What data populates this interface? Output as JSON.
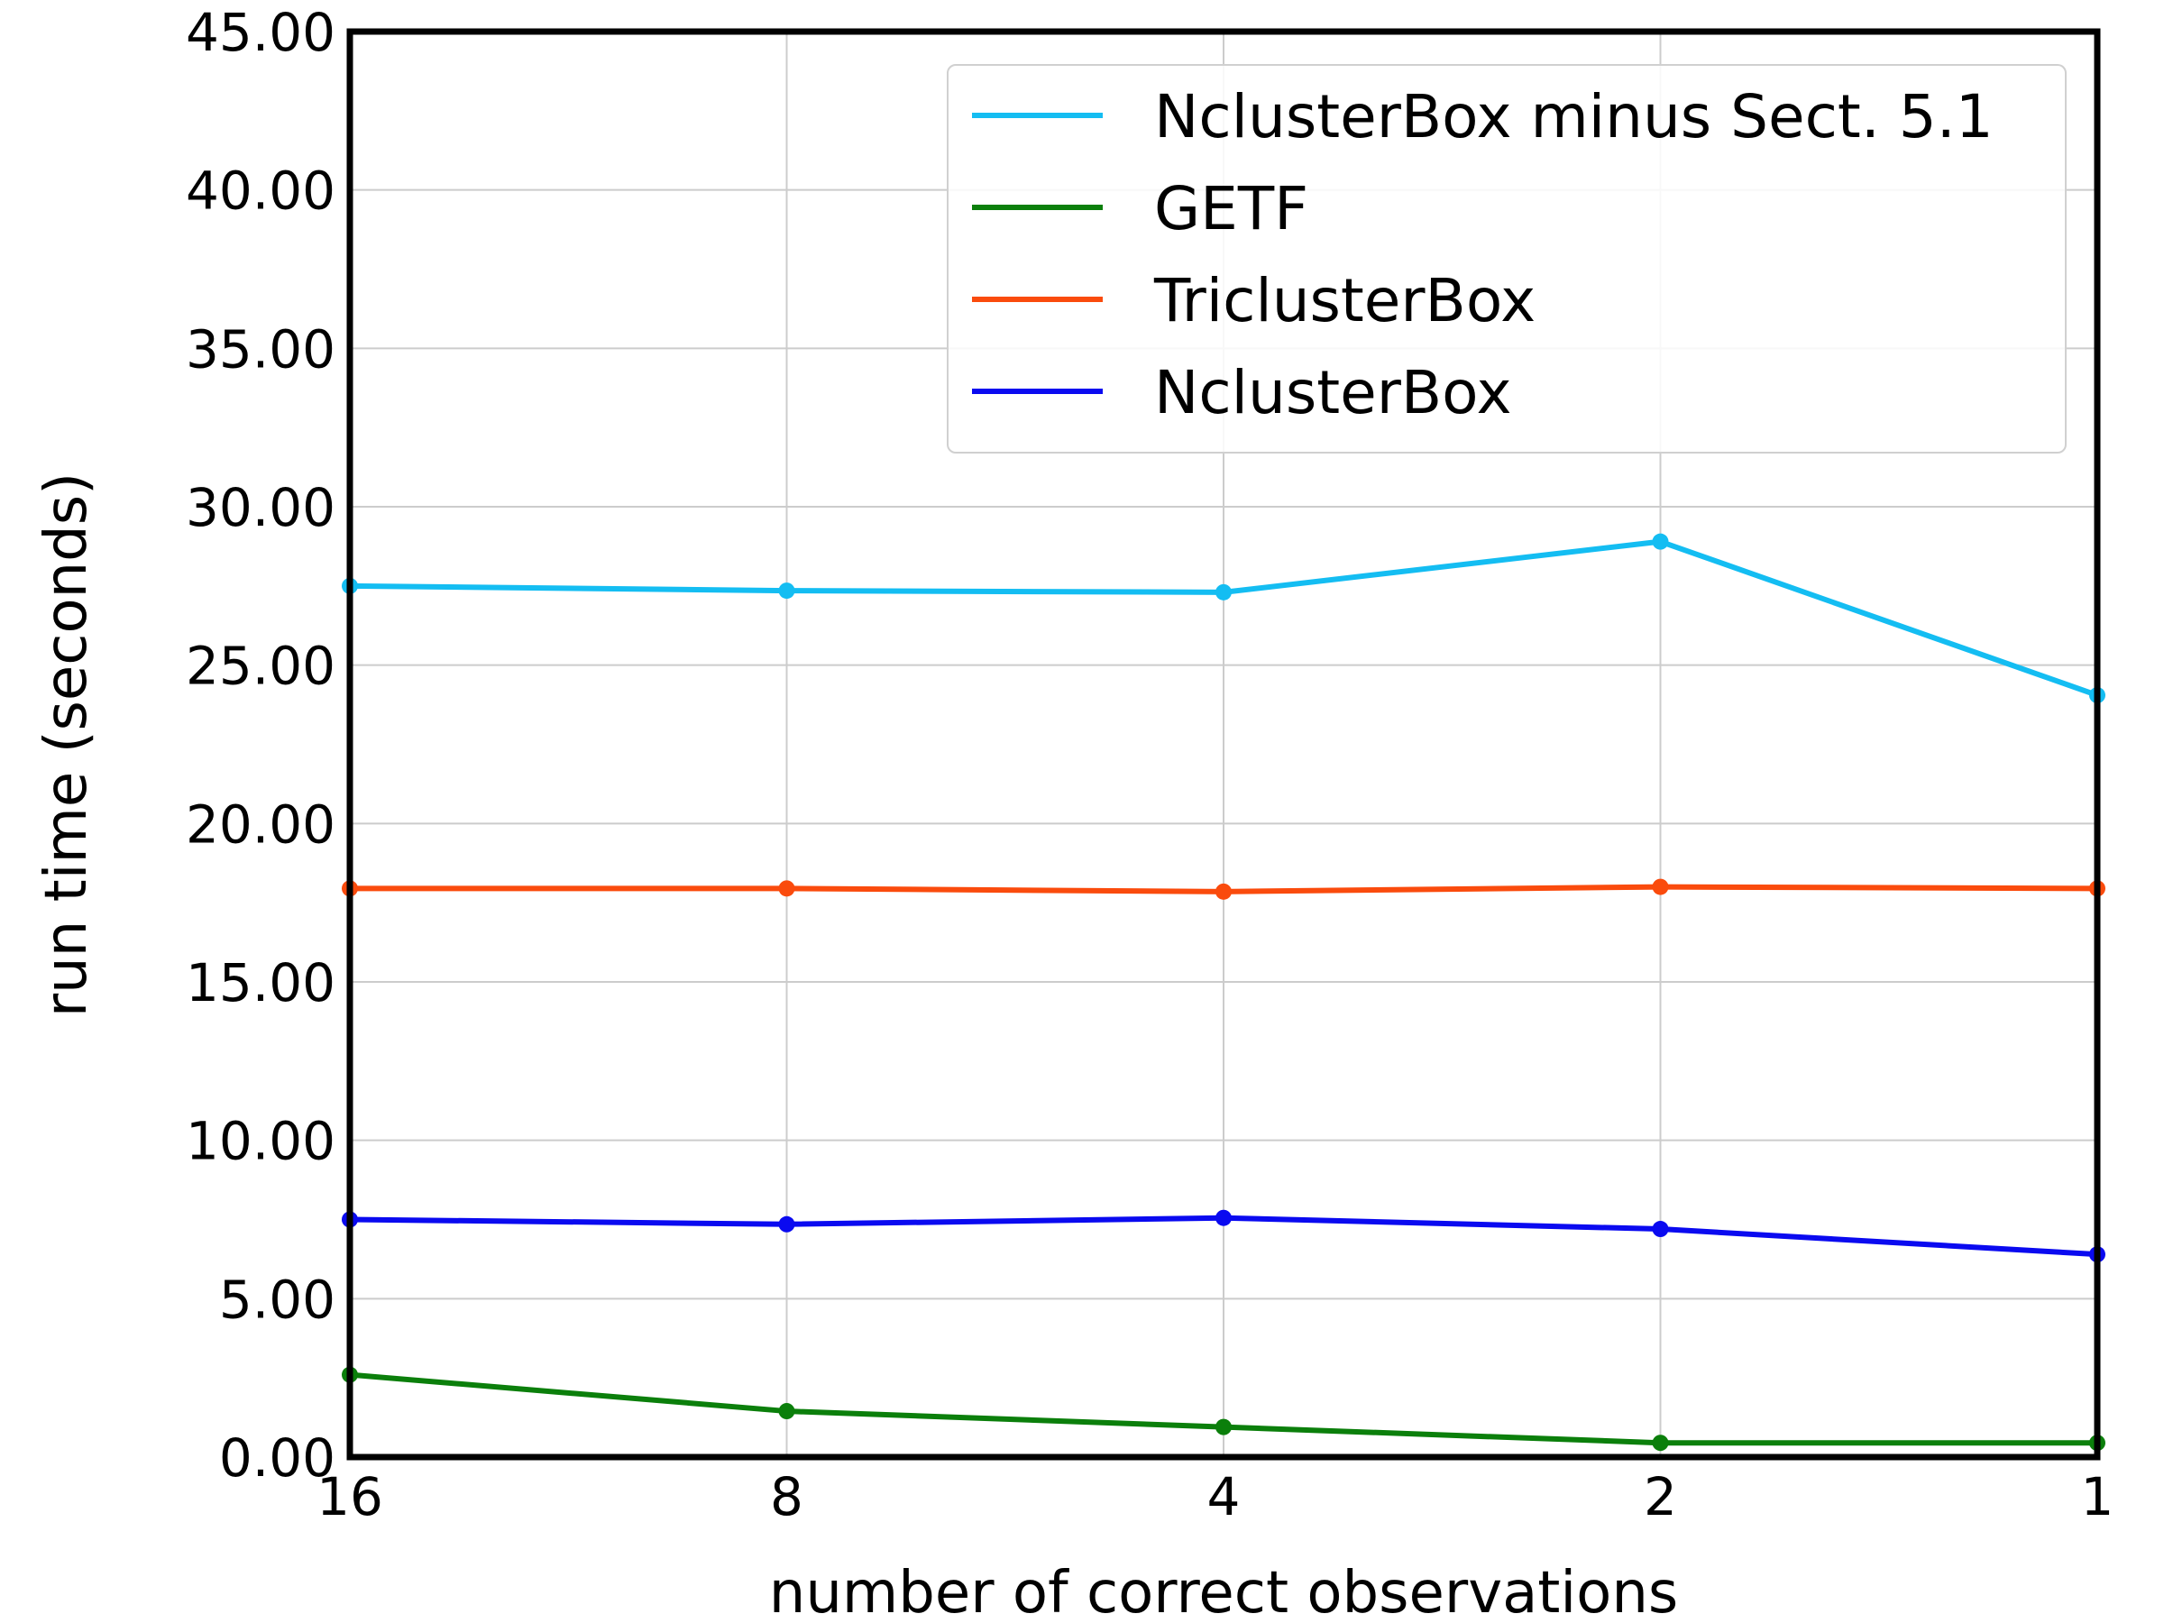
{
  "chart_data": {
    "type": "line",
    "xlabel": "number of correct observations",
    "ylabel": "run time (seconds)",
    "categories": [
      "16",
      "8",
      "4",
      "2",
      "1"
    ],
    "yticks": [
      "0.00",
      "5.00",
      "10.00",
      "15.00",
      "20.00",
      "25.00",
      "30.00",
      "35.00",
      "40.00",
      "45.00"
    ],
    "ylim": [
      0,
      45
    ],
    "grid": true,
    "legend_position": "top-right",
    "series": [
      {
        "name": "NclusterBox minus Sect. 5.1",
        "color": "#14bdf2",
        "values": [
          27.5,
          27.35,
          27.3,
          28.9,
          24.05
        ]
      },
      {
        "name": "GETF",
        "color": "#0b7f0b",
        "values": [
          2.6,
          1.45,
          0.95,
          0.45,
          0.45
        ]
      },
      {
        "name": "TriclusterBox",
        "color": "#fa4b0d",
        "values": [
          17.95,
          17.95,
          17.85,
          18.0,
          17.95
        ]
      },
      {
        "name": "NclusterBox",
        "color": "#0a0af0",
        "values": [
          7.5,
          7.35,
          7.55,
          7.2,
          6.4
        ]
      }
    ]
  }
}
